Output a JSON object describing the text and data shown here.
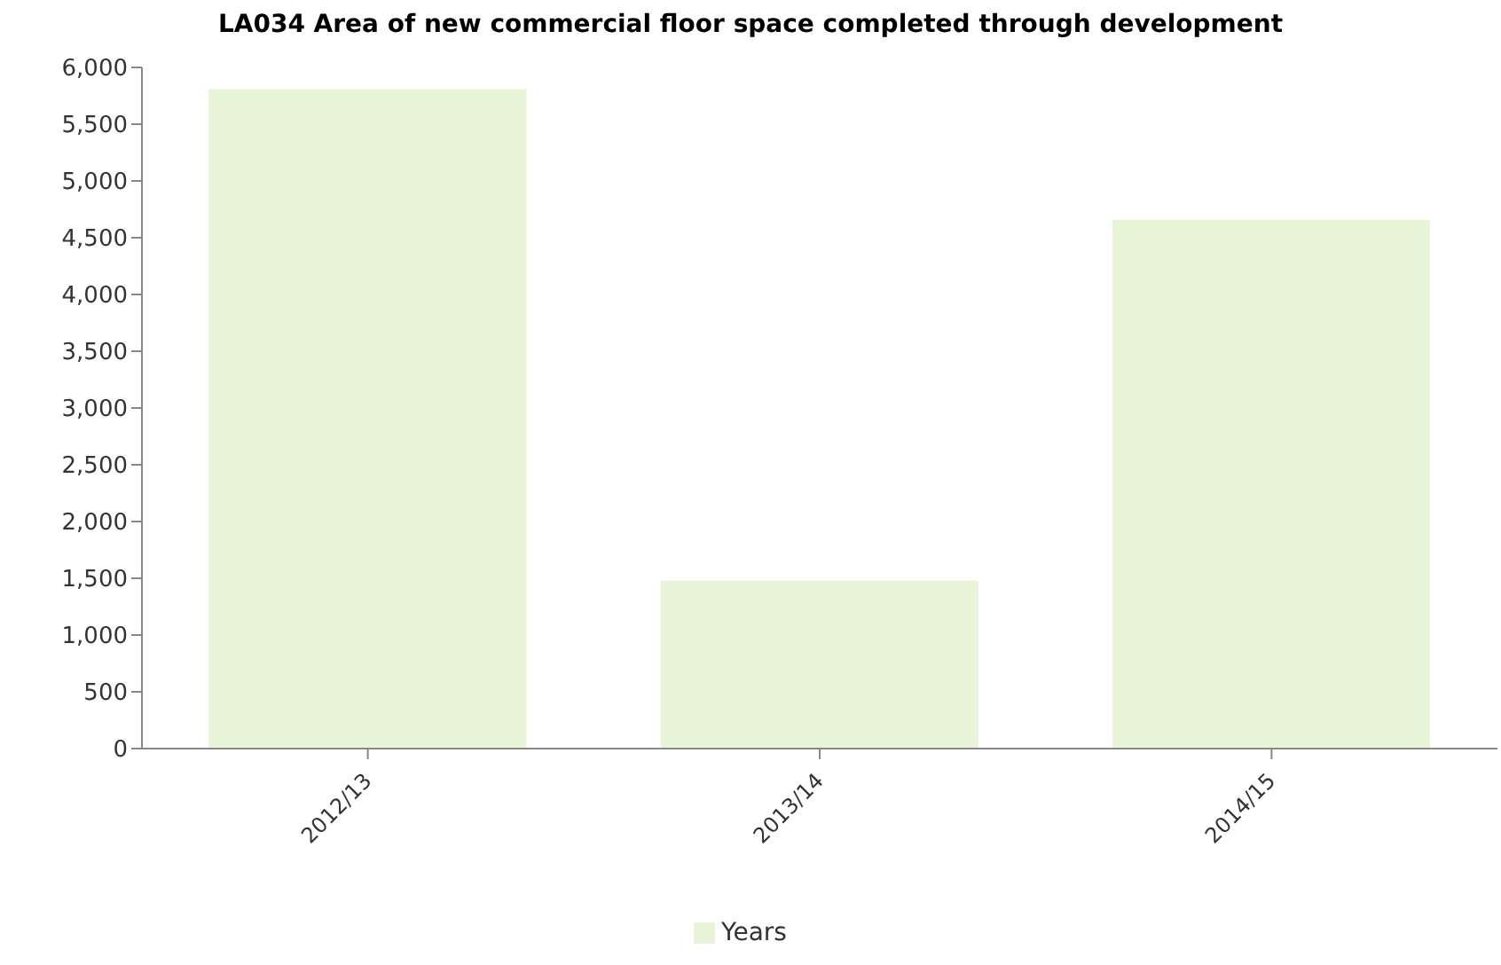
{
  "chart_data": {
    "type": "bar",
    "title": "LA034 Area of new commercial floor space completed through development",
    "categories": [
      "2012/13",
      "2013/14",
      "2014/15"
    ],
    "series": [
      {
        "name": "Years",
        "color": "#e8f4d8",
        "values": [
          5800,
          1470,
          4650
        ]
      }
    ],
    "ylim": [
      0,
      6000
    ],
    "yticks": [
      {
        "value": 0,
        "label": "0"
      },
      {
        "value": 500,
        "label": "500"
      },
      {
        "value": 1000,
        "label": "1,000"
      },
      {
        "value": 1500,
        "label": "1,500"
      },
      {
        "value": 2000,
        "label": "2,000"
      },
      {
        "value": 2500,
        "label": "2,500"
      },
      {
        "value": 3000,
        "label": "3,000"
      },
      {
        "value": 3500,
        "label": "3,500"
      },
      {
        "value": 4000,
        "label": "4,000"
      },
      {
        "value": 4500,
        "label": "4,500"
      },
      {
        "value": 5000,
        "label": "5,000"
      },
      {
        "value": 5500,
        "label": "5,500"
      },
      {
        "value": 6000,
        "label": "6,000"
      }
    ],
    "grid": false,
    "legend": "bottom"
  }
}
